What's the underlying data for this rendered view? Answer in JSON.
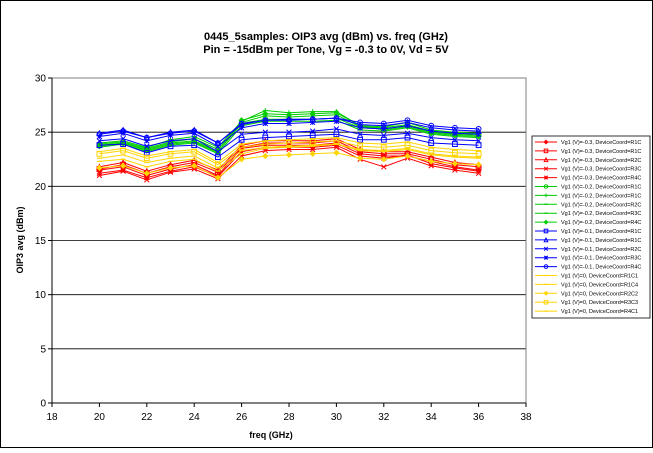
{
  "chart_data": {
    "type": "line",
    "title": "0445_5samples: OIP3 avg (dBm) vs. freq (GHz)",
    "subtitle": "Pin  = -15dBm per Tone, Vg = -0.3 to 0V, Vd = 5V",
    "xlabel": "freq (GHz)",
    "ylabel": "OIP3 avg (dBm)",
    "xlim": [
      18,
      38
    ],
    "ylim": [
      0,
      30
    ],
    "xticks": [
      18,
      20,
      22,
      24,
      26,
      28,
      30,
      32,
      34,
      36,
      38
    ],
    "yticks": [
      0,
      5,
      10,
      15,
      20,
      25,
      30
    ],
    "grid": "horizontal",
    "legend_position": "right",
    "x": [
      20,
      21,
      22,
      23,
      24,
      25,
      26,
      27,
      28,
      29,
      30,
      31,
      32,
      33,
      34,
      35,
      36
    ],
    "series": [
      {
        "name": "Vg1 (V)=-0.3, DeviceCoord=R1C",
        "color": "#ff0000",
        "marker": "diamond",
        "values": [
          21.5,
          21.8,
          21.0,
          21.6,
          22.0,
          21.0,
          23.5,
          23.8,
          23.8,
          23.8,
          24.0,
          23.0,
          22.8,
          22.8,
          22.3,
          21.8,
          21.5
        ]
      },
      {
        "name": "Vg1 (V)=-0.3, DeviceCoord=R1C",
        "color": "#ff0000",
        "marker": "square",
        "values": [
          21.6,
          22.0,
          21.2,
          21.8,
          22.2,
          21.3,
          23.6,
          24.0,
          24.0,
          24.0,
          24.2,
          23.2,
          23.0,
          23.0,
          22.5,
          22.0,
          21.8
        ]
      },
      {
        "name": "Vg1 (V)=-0.3, DeviceCoord=R2C",
        "color": "#ff0000",
        "marker": "triangle",
        "values": [
          21.8,
          22.2,
          21.4,
          22.0,
          22.4,
          21.5,
          23.8,
          24.2,
          24.2,
          24.2,
          24.4,
          23.4,
          23.2,
          23.2,
          22.7,
          22.2,
          22.0
        ]
      },
      {
        "name": "Vg1 (V)=-0.3, DeviceCoord=R3C",
        "color": "#ff0000",
        "marker": "x",
        "values": [
          21.0,
          21.4,
          20.6,
          21.3,
          21.6,
          20.7,
          22.8,
          23.3,
          23.4,
          23.4,
          23.6,
          22.5,
          21.8,
          22.6,
          21.9,
          21.5,
          21.2
        ]
      },
      {
        "name": "Vg1 (V)=-0.3, DeviceCoord=R4C",
        "color": "#ff0000",
        "marker": "star",
        "values": [
          21.2,
          21.5,
          20.8,
          21.4,
          21.8,
          20.9,
          23.2,
          23.6,
          23.6,
          23.6,
          23.8,
          22.8,
          22.6,
          22.9,
          22.1,
          21.7,
          21.4
        ]
      },
      {
        "name": "Vg1 (V)=-0.2, DeviceCoord=R1C",
        "color": "#00cc00",
        "marker": "circle",
        "values": [
          23.8,
          24.0,
          23.4,
          24.0,
          24.2,
          23.2,
          25.8,
          26.2,
          26.2,
          26.2,
          26.3,
          25.4,
          25.3,
          25.6,
          25.0,
          24.8,
          24.7
        ]
      },
      {
        "name": "Vg1 (V)=-0.2, DeviceCoord=R1C",
        "color": "#00cc00",
        "marker": "plus",
        "values": [
          24.0,
          24.2,
          23.6,
          24.3,
          24.6,
          23.6,
          26.0,
          27.0,
          26.8,
          26.9,
          26.9,
          25.6,
          25.5,
          25.9,
          25.2,
          25.0,
          24.9
        ]
      },
      {
        "name": "Vg1 (V)=-0.2, DeviceCoord=R2C",
        "color": "#00cc00",
        "marker": "dash",
        "values": [
          23.6,
          23.9,
          23.2,
          23.8,
          24.0,
          23.0,
          25.6,
          26.0,
          26.0,
          26.0,
          26.1,
          25.2,
          25.1,
          25.4,
          24.8,
          24.6,
          24.5
        ]
      },
      {
        "name": "Vg1 (V)=-0.2, DeviceCoord=R3C",
        "color": "#00cc00",
        "marker": "dash",
        "values": [
          23.9,
          24.1,
          23.5,
          24.1,
          24.4,
          23.4,
          25.9,
          26.5,
          26.4,
          26.5,
          26.6,
          25.5,
          25.4,
          25.7,
          25.1,
          24.9,
          24.8
        ]
      },
      {
        "name": "Vg1 (V)=-0.2, DeviceCoord=R4C",
        "color": "#00cc00",
        "marker": "diamond",
        "values": [
          23.7,
          24.0,
          23.3,
          23.9,
          24.1,
          23.1,
          26.1,
          26.7,
          26.6,
          26.7,
          26.8,
          25.6,
          25.2,
          25.5,
          24.9,
          24.7,
          24.6
        ]
      },
      {
        "name": "Vg1 (V)=-0.1, DeviceCoord=R1C",
        "color": "#0000ff",
        "marker": "square",
        "values": [
          23.8,
          23.9,
          23.1,
          23.7,
          23.8,
          22.7,
          24.3,
          24.5,
          24.6,
          24.7,
          24.8,
          24.3,
          24.3,
          24.5,
          24.0,
          23.9,
          23.8
        ]
      },
      {
        "name": "Vg1 (V)=-0.1, DeviceCoord=R1C",
        "color": "#0000ff",
        "marker": "triangle",
        "values": [
          24.9,
          25.2,
          24.5,
          25.0,
          25.2,
          24.0,
          25.7,
          26.1,
          26.2,
          26.2,
          26.3,
          25.7,
          25.6,
          25.9,
          25.4,
          25.2,
          25.1
        ]
      },
      {
        "name": "Vg1 (V)=-0.1, DeviceCoord=R2C",
        "color": "#0000ff",
        "marker": "x",
        "values": [
          24.2,
          24.4,
          23.7,
          24.2,
          24.4,
          23.2,
          24.8,
          25.0,
          25.0,
          25.1,
          25.3,
          24.8,
          24.7,
          24.9,
          24.5,
          24.3,
          24.2
        ]
      },
      {
        "name": "Vg1 (V)=-0.1, DeviceCoord=R3C",
        "color": "#0000ff",
        "marker": "star",
        "values": [
          24.6,
          24.9,
          24.2,
          24.7,
          24.9,
          23.7,
          25.4,
          25.8,
          25.8,
          25.9,
          26.0,
          25.4,
          25.3,
          25.6,
          25.1,
          24.9,
          24.8
        ]
      },
      {
        "name": "Vg1 (V)=-0.1, DeviceCoord=R4C",
        "color": "#0000ff",
        "marker": "circle",
        "values": [
          24.8,
          25.1,
          24.5,
          24.9,
          25.1,
          24.0,
          25.8,
          26.1,
          26.1,
          26.2,
          26.3,
          25.9,
          25.8,
          26.1,
          25.6,
          25.4,
          25.3
        ]
      },
      {
        "name": "Vg1 (V)=0, DeviceCoord=R1C1",
        "color": "#ffd400",
        "marker": "dash",
        "values": [
          22.3,
          22.5,
          21.8,
          22.3,
          22.5,
          21.4,
          23.0,
          23.5,
          23.6,
          23.7,
          23.9,
          23.3,
          23.2,
          23.4,
          22.9,
          22.7,
          22.6
        ]
      },
      {
        "name": "Vg1 (V)=0, DeviceCoord=R1C4",
        "color": "#ffd400",
        "marker": "dash",
        "values": [
          23.2,
          23.5,
          22.8,
          23.2,
          23.4,
          22.2,
          23.9,
          24.2,
          24.3,
          24.4,
          24.5,
          24.0,
          23.9,
          24.1,
          23.6,
          23.4,
          23.3
        ]
      },
      {
        "name": "Vg1 (V)=0, DeviceCoord=R2C2",
        "color": "#ffd400",
        "marker": "diamond",
        "values": [
          21.7,
          21.9,
          21.2,
          21.7,
          21.9,
          20.8,
          22.5,
          22.8,
          22.9,
          23.0,
          23.1,
          22.6,
          22.5,
          22.8,
          22.3,
          22.1,
          22.0
        ]
      },
      {
        "name": "Vg1 (V)=0, DeviceCoord=R3C3",
        "color": "#ffd400",
        "marker": "square",
        "values": [
          23.0,
          23.3,
          22.6,
          23.0,
          23.2,
          22.0,
          23.6,
          23.9,
          24.0,
          24.1,
          24.2,
          23.7,
          23.6,
          23.8,
          23.3,
          23.1,
          23.0
        ]
      },
      {
        "name": "Vg1 (V)=0, DeviceCoord=R4C1",
        "color": "#ffd400",
        "marker": "dash",
        "values": [
          22.6,
          22.9,
          22.2,
          22.6,
          22.8,
          21.7,
          23.3,
          23.6,
          23.7,
          23.8,
          23.9,
          23.4,
          23.3,
          23.5,
          23.0,
          22.8,
          22.7
        ]
      }
    ]
  }
}
